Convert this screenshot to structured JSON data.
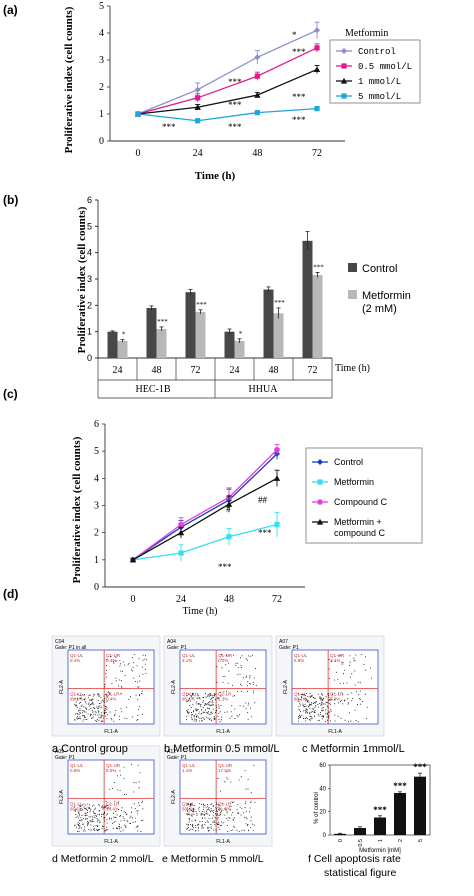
{
  "figure": {
    "panel_labels": [
      "(a)",
      "(b)",
      "(c)",
      "(d)"
    ]
  },
  "chart_data": [
    {
      "panel": "(a)",
      "type": "line",
      "title": "",
      "xlabel": "Time (h)",
      "ylabel": "Proliferative index (cell counts)",
      "x": [
        0,
        24,
        48,
        72
      ],
      "xticks": [
        "0",
        "24",
        "48",
        "72"
      ],
      "yticks": [
        "0",
        "1",
        "2",
        "3",
        "4",
        "5"
      ],
      "ylim": [
        0,
        5
      ],
      "legend_title": "Metformin",
      "legend_position": "right",
      "series": [
        {
          "name": "Control",
          "values": [
            1.0,
            1.9,
            3.1,
            4.1
          ],
          "errors": [
            0.05,
            0.25,
            0.25,
            0.3
          ],
          "color": "#8a8fc8",
          "marker": "diamond"
        },
        {
          "name": "0.5 mmol/L",
          "values": [
            1.0,
            1.6,
            2.4,
            3.45
          ],
          "errors": [
            0.05,
            0.15,
            0.15,
            0.15
          ],
          "color": "#e0198c",
          "marker": "square"
        },
        {
          "name": "1 mmol/L",
          "values": [
            1.0,
            1.25,
            1.7,
            2.65
          ],
          "errors": [
            0.05,
            0.1,
            0.1,
            0.15
          ],
          "color": "#111111",
          "marker": "triangle"
        },
        {
          "name": "5 mmol/L",
          "values": [
            1.0,
            0.75,
            1.05,
            1.2
          ],
          "errors": [
            0.05,
            0.05,
            0.05,
            0.05
          ],
          "color": "#1ba7d8",
          "marker": "square"
        }
      ],
      "annotations": [
        "*",
        "***",
        "***",
        "***",
        "***",
        "***",
        "***",
        "***"
      ]
    },
    {
      "panel": "(b)",
      "type": "bar",
      "title": "",
      "xlabel": "Time (h)",
      "ylabel": "Proliferative index (cell counts)",
      "categories": [
        "24",
        "48",
        "72",
        "24",
        "48",
        "72"
      ],
      "groups": [
        "HEC-1B",
        "HHUA"
      ],
      "yticks": [
        "0",
        "1",
        "2",
        "3",
        "4",
        "5",
        "6"
      ],
      "ylim": [
        0,
        6
      ],
      "legend_position": "right",
      "series": [
        {
          "name": "Control",
          "values": [
            1.0,
            1.9,
            2.5,
            1.0,
            2.6,
            4.45
          ],
          "errors": [
            0.03,
            0.08,
            0.1,
            0.1,
            0.1,
            0.35
          ],
          "color": "#474747"
        },
        {
          "name": "Metformin\n(2 mM)",
          "values": [
            0.65,
            1.1,
            1.75,
            0.65,
            1.7,
            3.15
          ],
          "errors": [
            0.05,
            0.08,
            0.08,
            0.08,
            0.2,
            0.1
          ],
          "color": "#b8b8b8"
        }
      ],
      "legend_labels": [
        "Control",
        "Metformin",
        "(2 mM)"
      ],
      "annotations": [
        "*",
        "***",
        "***",
        "*",
        "***",
        "***"
      ]
    },
    {
      "panel": "(c)",
      "type": "line",
      "title": "",
      "xlabel": "Time (h)",
      "ylabel": "Proliferative index (cell counts)",
      "x": [
        0,
        24,
        48,
        72
      ],
      "xticks": [
        "0",
        "24",
        "48",
        "72"
      ],
      "yticks": [
        "0",
        "1",
        "2",
        "3",
        "4",
        "5",
        "6"
      ],
      "ylim": [
        0,
        6
      ],
      "legend_position": "right",
      "series": [
        {
          "name": "Control",
          "values": [
            1.0,
            2.2,
            3.2,
            4.9
          ],
          "errors": [
            0.05,
            0.25,
            0.4,
            0.2
          ],
          "color": "#1f3bbf",
          "marker": "diamond"
        },
        {
          "name": "Metformin",
          "values": [
            1.0,
            1.25,
            1.85,
            2.3
          ],
          "errors": [
            0.05,
            0.3,
            0.3,
            0.45
          ],
          "color": "#32e0f0",
          "marker": "square"
        },
        {
          "name": "Compound  C",
          "values": [
            1.0,
            2.3,
            3.3,
            5.05
          ],
          "errors": [
            0.05,
            0.25,
            0.35,
            0.2
          ],
          "color": "#e040e0",
          "marker": "circle"
        },
        {
          "name": "Metformin +\ncompound  C",
          "values": [
            1.0,
            2.0,
            3.05,
            4.0
          ],
          "errors": [
            0.05,
            0.2,
            0.3,
            0.3
          ],
          "color": "#111111",
          "marker": "triangle"
        }
      ],
      "legend_labels": [
        "Control",
        "Metformin",
        "Compound  C",
        "Metformin +",
        "compound  C"
      ],
      "annotations": [
        "***",
        "***",
        "##",
        "#"
      ]
    },
    {
      "panel": "(d) f",
      "type": "bar",
      "title": "",
      "xlabel": "Metformin [mM]",
      "ylabel": "% of control",
      "categories": [
        "0",
        "0.5",
        "1",
        "2",
        "5"
      ],
      "yticks": [
        "0",
        "20",
        "40",
        "60"
      ],
      "ylim": [
        0,
        60
      ],
      "series": [
        {
          "name": "",
          "values": [
            1,
            6,
            15,
            36,
            50
          ],
          "errors": [
            0.5,
            1,
            1.5,
            1,
            3
          ],
          "color": "#111111"
        }
      ],
      "annotations": [
        "***",
        "***",
        "***"
      ]
    }
  ],
  "flow_panels": [
    {
      "caption": "a  Control group",
      "sample": "C04",
      "gate": "Gate: P1 in all",
      "quadrants": [
        "Q1-UL",
        "Q1-UR",
        "Q1-LL",
        "Q1-LR"
      ],
      "q_values": [
        "0.4%",
        "0.4%",
        "99.1%",
        "0.4%"
      ]
    },
    {
      "caption": "b Metformin 0.5 mmol/L",
      "sample": "A04",
      "gate": "Gate: P1",
      "quadrants": [
        "Q1-UL",
        "Q1-UR",
        "Q1-LL",
        "Q1-LR"
      ],
      "q_values": [
        "3.1%",
        "0.2%",
        "95.4%",
        "1.3%"
      ]
    },
    {
      "caption": "c Metformin 1mmol/L",
      "sample": "A07",
      "gate": "Gate: P1",
      "quadrants": [
        "Q1-UL",
        "Q1-UR",
        "Q1-LL",
        "Q1-LR"
      ],
      "q_values": [
        "5.8%",
        "3.1%",
        "86.1%",
        "5.0%"
      ]
    },
    {
      "caption": "d Metformin 2 mmol/L",
      "sample": "A09",
      "gate": "Gate: P1",
      "quadrants": [
        "Q1-UL",
        "Q1-UR",
        "Q1-LL",
        "Q1-LR"
      ],
      "q_values": [
        "0.5%",
        "8.5%",
        "66.6%",
        "24.4%"
      ]
    },
    {
      "caption": "e Metformin 5 mmol/L",
      "sample": "A12",
      "gate": "Gate: P1",
      "quadrants": [
        "Q1-UL",
        "Q1-UR",
        "Q1-LL",
        "Q1-LR"
      ],
      "q_values": [
        "1.1%",
        "17.5%",
        "50.4%",
        "31.0%"
      ]
    }
  ],
  "flow_axis": {
    "x": "FL1-A",
    "y": "FL2-A"
  },
  "bar_caption": [
    "f Cell apoptosis rate",
    "statistical figure"
  ],
  "colors": {
    "quadrant_line": "#d33",
    "flow_frame": "#3a4fd0",
    "text_red": "#c03030"
  }
}
